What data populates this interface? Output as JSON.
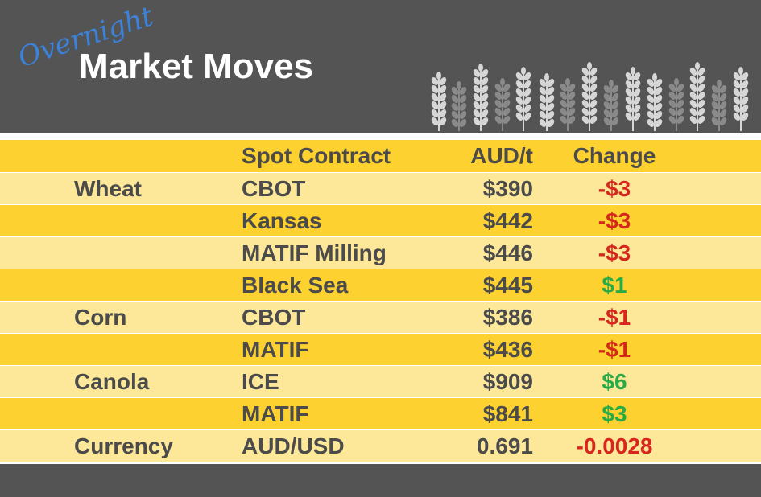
{
  "header": {
    "script_title": "Overnight",
    "title": "Market Moves"
  },
  "table": {
    "columns": [
      "Spot Contract",
      "AUD/t",
      "Change"
    ],
    "rows": [
      [
        "Wheat",
        "CBOT",
        "$390",
        "-$3"
      ],
      [
        null,
        "Kansas",
        "$442",
        "-$3"
      ],
      [
        null,
        "MATIF Milling",
        "$446",
        "-$3"
      ],
      [
        null,
        "Black Sea",
        "$445",
        "$1"
      ],
      [
        "Corn",
        "CBOT",
        "$386",
        "-$1"
      ],
      [
        null,
        "MATIF",
        "$436",
        "-$1"
      ],
      [
        "Canola",
        "ICE",
        "$909",
        "$6"
      ],
      [
        null,
        "MATIF",
        "$841",
        "$3"
      ],
      [
        "Currency",
        "AUD/USD",
        "0.691",
        "-0.0028"
      ]
    ],
    "negative_color": "#d7261e",
    "positive_color": "#2aab48"
  }
}
